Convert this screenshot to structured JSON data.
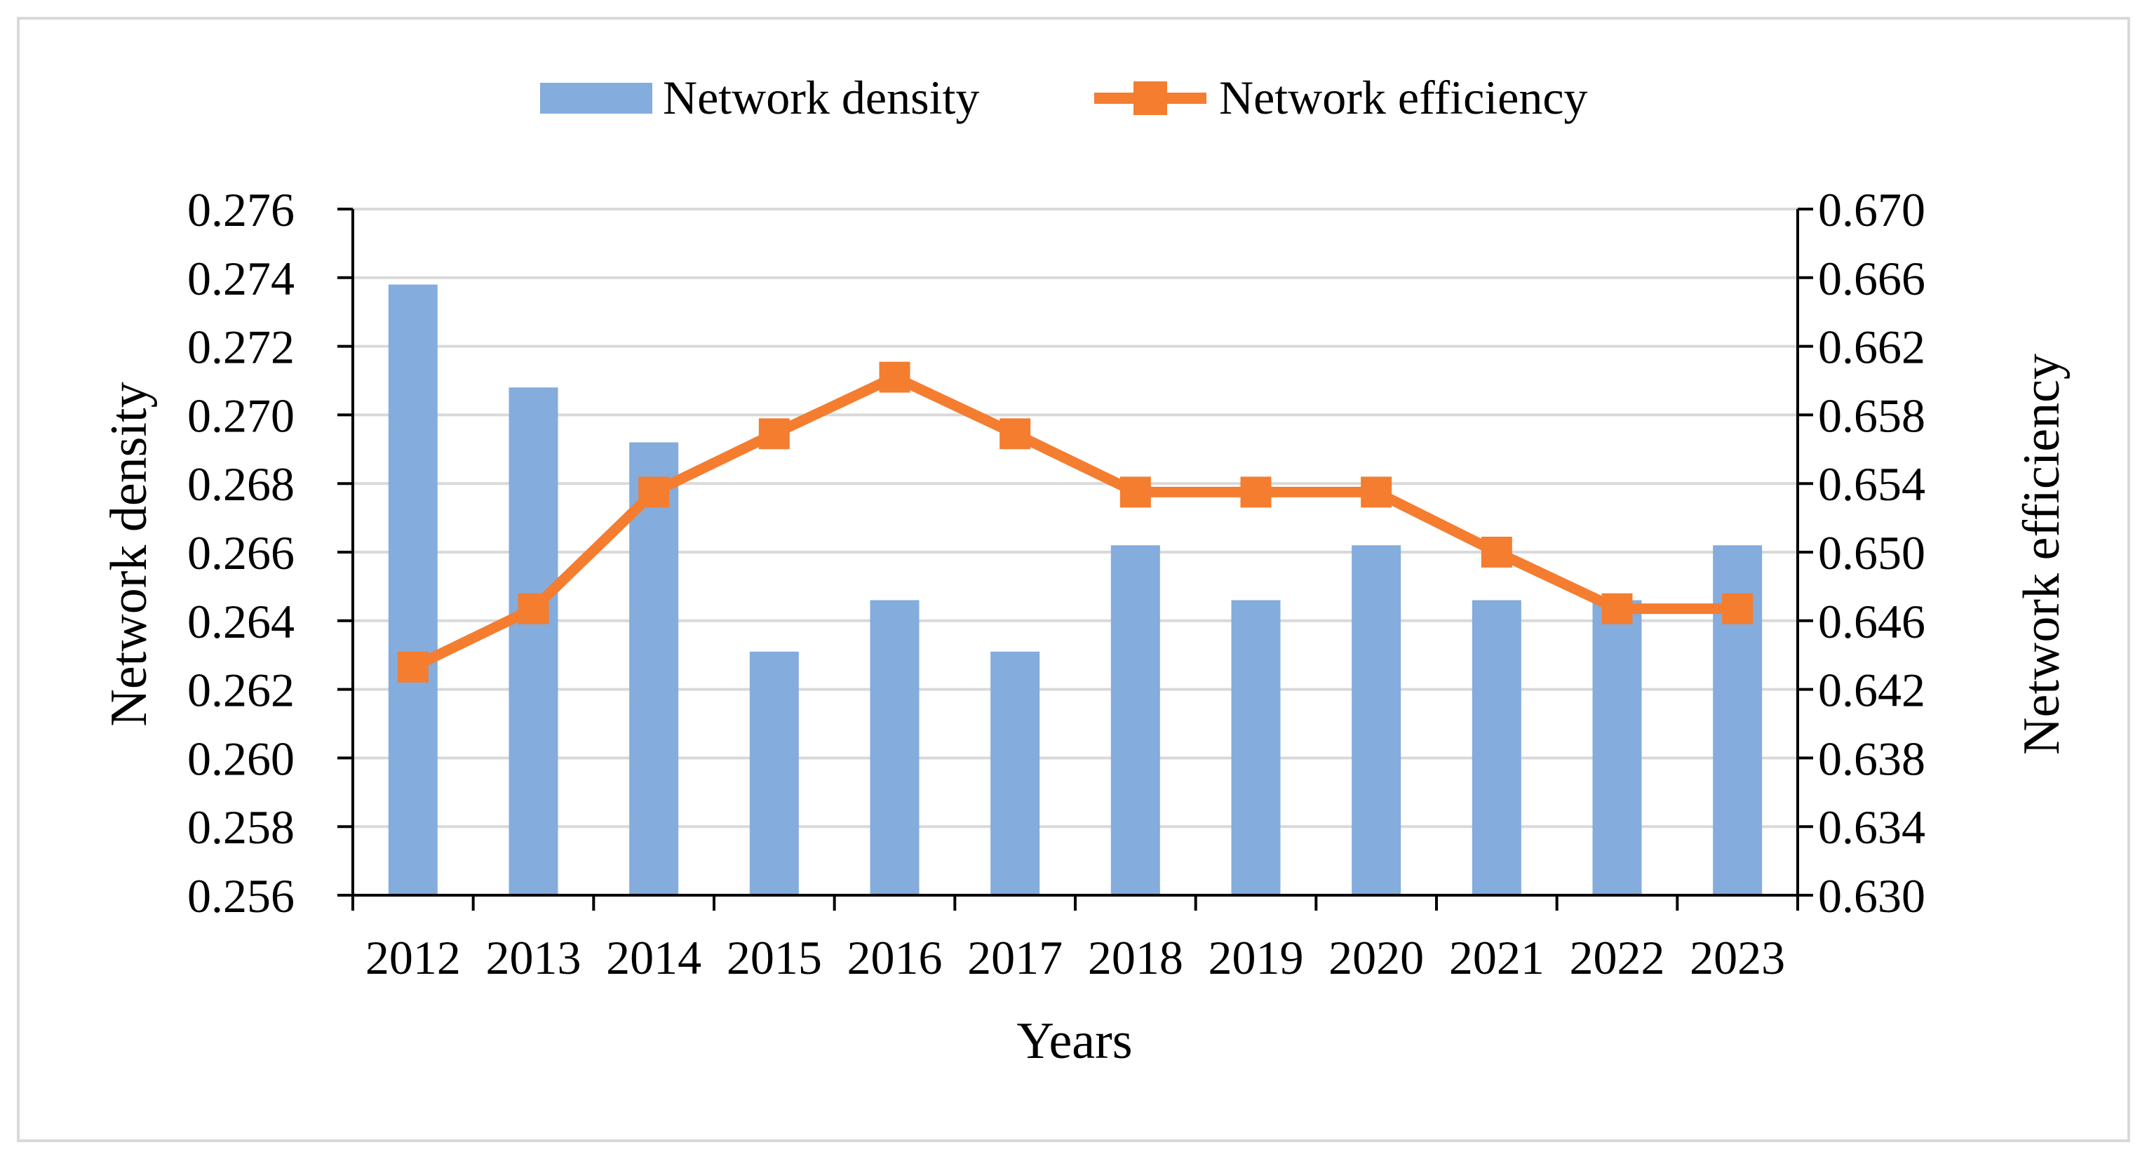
{
  "chart_data": {
    "type": "bar+line",
    "categories": [
      "2012",
      "2013",
      "2014",
      "2015",
      "2016",
      "2017",
      "2018",
      "2019",
      "2020",
      "2021",
      "2022",
      "2023"
    ],
    "series": [
      {
        "name": "Network density",
        "type": "bar",
        "axis": "left",
        "color": "#84ACDD",
        "values": [
          0.2738,
          0.2708,
          0.2692,
          0.2631,
          0.2646,
          0.2631,
          0.2662,
          0.2646,
          0.2662,
          0.2646,
          0.2646,
          0.2662
        ]
      },
      {
        "name": "Network efficiency",
        "type": "line",
        "axis": "right",
        "color": "#F47D30",
        "marker": "square",
        "values": [
          0.6433,
          0.6467,
          0.6535,
          0.6569,
          0.6602,
          0.6569,
          0.6535,
          0.6535,
          0.6535,
          0.65,
          0.6467,
          0.6467
        ]
      }
    ],
    "xlabel": "Years",
    "ylabel_left": "Network density",
    "ylabel_right": "Network efficiency",
    "ylim_left": [
      0.256,
      0.276
    ],
    "ylim_right": [
      0.63,
      0.67
    ],
    "yticks_left": [
      "0.256",
      "0.258",
      "0.260",
      "0.262",
      "0.264",
      "0.266",
      "0.268",
      "0.270",
      "0.272",
      "0.274",
      "0.276"
    ],
    "yticks_right": [
      "0.630",
      "0.634",
      "0.638",
      "0.642",
      "0.646",
      "0.650",
      "0.654",
      "0.658",
      "0.662",
      "0.666",
      "0.670"
    ],
    "grid": true,
    "legend_position": "top-center",
    "border_color": "#D9D9D9",
    "grid_color": "#D9D9D9"
  }
}
